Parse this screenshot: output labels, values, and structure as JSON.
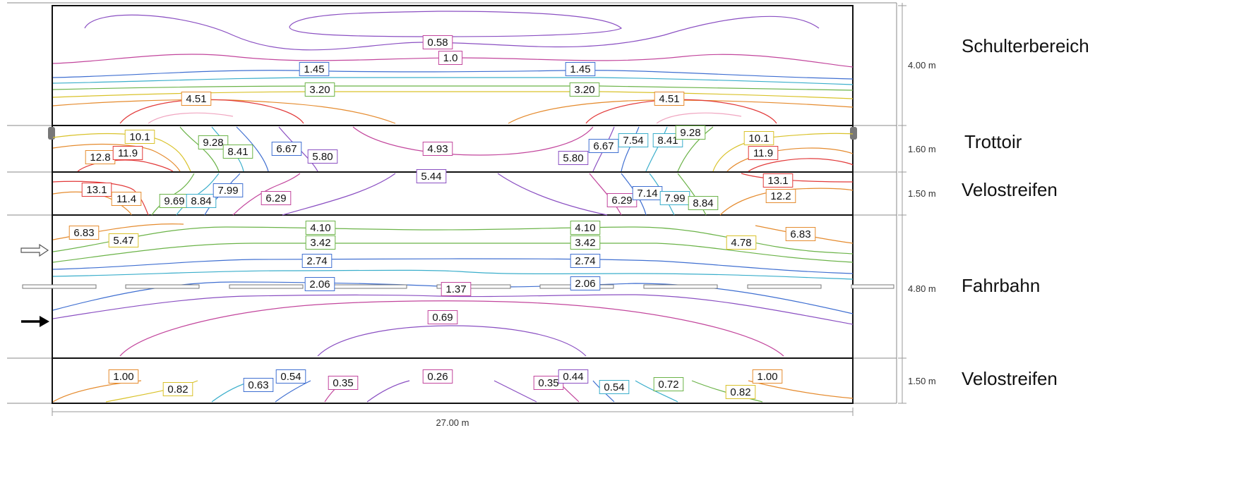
{
  "zones": [
    {
      "name": "Schulterbereich",
      "width": "4.00 m"
    },
    {
      "name": "Trottoir",
      "width": "1.60 m"
    },
    {
      "name": "Velostreifen",
      "width": "1.50 m"
    },
    {
      "name": "Fahrbahn",
      "width": "4.80 m"
    },
    {
      "name": "Velostreifen",
      "width": "1.50 m"
    }
  ],
  "total_length": "27.00 m",
  "contour_labels": [
    {
      "zone": 0,
      "text": "0.58",
      "color": "#c2459c"
    },
    {
      "zone": 0,
      "text": "1.0",
      "color": "#c2459c"
    },
    {
      "zone": 0,
      "text": "1.45",
      "color": "#3f6fd1"
    },
    {
      "zone": 0,
      "text": "1.45",
      "color": "#3f6fd1"
    },
    {
      "zone": 0,
      "text": "3.20",
      "color": "#6bb348"
    },
    {
      "zone": 0,
      "text": "3.20",
      "color": "#6bb348"
    },
    {
      "zone": 0,
      "text": "4.51",
      "color": "#e58b2e"
    },
    {
      "zone": 0,
      "text": "4.51",
      "color": "#e58b2e"
    },
    {
      "zone": 1,
      "text": "10.1",
      "color": "#d9c22a"
    },
    {
      "zone": 1,
      "text": "9.28",
      "color": "#6bb348"
    },
    {
      "zone": 1,
      "text": "12.8",
      "color": "#e58b2e"
    },
    {
      "zone": 1,
      "text": "11.9",
      "color": "#e23a3a"
    },
    {
      "zone": 1,
      "text": "8.41",
      "color": "#6bb348"
    },
    {
      "zone": 1,
      "text": "6.67",
      "color": "#3f6fd1"
    },
    {
      "zone": 1,
      "text": "5.80",
      "color": "#8a4fc2"
    },
    {
      "zone": 1,
      "text": "4.93",
      "color": "#c2459c"
    },
    {
      "zone": 1,
      "text": "5.80",
      "color": "#8a4fc2"
    },
    {
      "zone": 1,
      "text": "6.67",
      "color": "#3f6fd1"
    },
    {
      "zone": 1,
      "text": "7.54",
      "color": "#3aaecb"
    },
    {
      "zone": 1,
      "text": "8.41",
      "color": "#3aaecb"
    },
    {
      "zone": 1,
      "text": "9.28",
      "color": "#6bb348"
    },
    {
      "zone": 1,
      "text": "10.1",
      "color": "#d9c22a"
    },
    {
      "zone": 1,
      "text": "11.9",
      "color": "#e23a3a"
    },
    {
      "zone": 2,
      "text": "13.1",
      "color": "#e23a3a"
    },
    {
      "zone": 2,
      "text": "11.4",
      "color": "#e58b2e"
    },
    {
      "zone": 2,
      "text": "9.69",
      "color": "#6bb348"
    },
    {
      "zone": 2,
      "text": "8.84",
      "color": "#3aaecb"
    },
    {
      "zone": 2,
      "text": "7.99",
      "color": "#3f6fd1"
    },
    {
      "zone": 2,
      "text": "6.29",
      "color": "#c2459c"
    },
    {
      "zone": 2,
      "text": "5.44",
      "color": "#8a4fc2"
    },
    {
      "zone": 2,
      "text": "6.29",
      "color": "#c2459c"
    },
    {
      "zone": 2,
      "text": "7.14",
      "color": "#3f6fd1"
    },
    {
      "zone": 2,
      "text": "7.99",
      "color": "#3aaecb"
    },
    {
      "zone": 2,
      "text": "8.84",
      "color": "#6bb348"
    },
    {
      "zone": 2,
      "text": "13.1",
      "color": "#e23a3a"
    },
    {
      "zone": 2,
      "text": "12.2",
      "color": "#e58b2e"
    },
    {
      "zone": 3,
      "text": "6.83",
      "color": "#e58b2e"
    },
    {
      "zone": 3,
      "text": "5.47",
      "color": "#d9c22a"
    },
    {
      "zone": 3,
      "text": "4.10",
      "color": "#6bb348"
    },
    {
      "zone": 3,
      "text": "4.10",
      "color": "#6bb348"
    },
    {
      "zone": 3,
      "text": "3.42",
      "color": "#6bb348"
    },
    {
      "zone": 3,
      "text": "3.42",
      "color": "#6bb348"
    },
    {
      "zone": 3,
      "text": "2.74",
      "color": "#3f6fd1"
    },
    {
      "zone": 3,
      "text": "2.74",
      "color": "#3f6fd1"
    },
    {
      "zone": 3,
      "text": "2.06",
      "color": "#3f6fd1"
    },
    {
      "zone": 3,
      "text": "2.06",
      "color": "#3f6fd1"
    },
    {
      "zone": 3,
      "text": "1.37",
      "color": "#c2459c"
    },
    {
      "zone": 3,
      "text": "0.69",
      "color": "#c2459c"
    },
    {
      "zone": 3,
      "text": "4.78",
      "color": "#d9c22a"
    },
    {
      "zone": 3,
      "text": "6.83",
      "color": "#e58b2e"
    },
    {
      "zone": 4,
      "text": "1.00",
      "color": "#e58b2e"
    },
    {
      "zone": 4,
      "text": "0.82",
      "color": "#d9c22a"
    },
    {
      "zone": 4,
      "text": "0.63",
      "color": "#3f6fd1"
    },
    {
      "zone": 4,
      "text": "0.54",
      "color": "#3f6fd1"
    },
    {
      "zone": 4,
      "text": "0.35",
      "color": "#c2459c"
    },
    {
      "zone": 4,
      "text": "0.26",
      "color": "#c2459c"
    },
    {
      "zone": 4,
      "text": "0.35",
      "color": "#c2459c"
    },
    {
      "zone": 4,
      "text": "0.44",
      "color": "#8a4fc2"
    },
    {
      "zone": 4,
      "text": "0.54",
      "color": "#3aaecb"
    },
    {
      "zone": 4,
      "text": "0.72",
      "color": "#6bb348"
    },
    {
      "zone": 4,
      "text": "1.00",
      "color": "#e58b2e"
    },
    {
      "zone": 4,
      "text": "0.82",
      "color": "#d9c22a"
    }
  ],
  "traffic_directions": [
    {
      "style": "outline-arrow",
      "direction": "right"
    },
    {
      "style": "solid-arrow",
      "direction": "right"
    }
  ]
}
